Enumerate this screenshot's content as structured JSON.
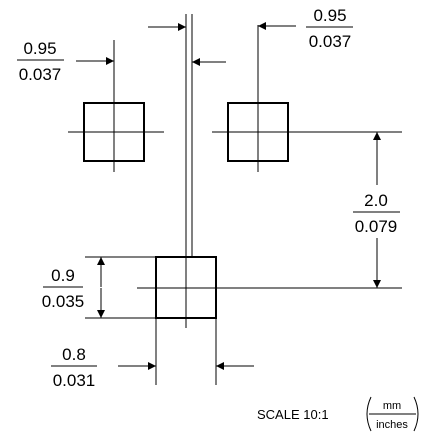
{
  "dims": {
    "top_left": {
      "mm": "0.95",
      "in": "0.037"
    },
    "top_right": {
      "mm": "0.95",
      "in": "0.037"
    },
    "pitch": {
      "mm": "2.0",
      "in": "0.079"
    },
    "pad_height": {
      "mm": "0.9",
      "in": "0.035"
    },
    "pad_width": {
      "mm": "0.8",
      "in": "0.031"
    }
  },
  "scale": {
    "label": "SCALE 10:1",
    "unit_top": "mm",
    "unit_bottom": "inches"
  }
}
